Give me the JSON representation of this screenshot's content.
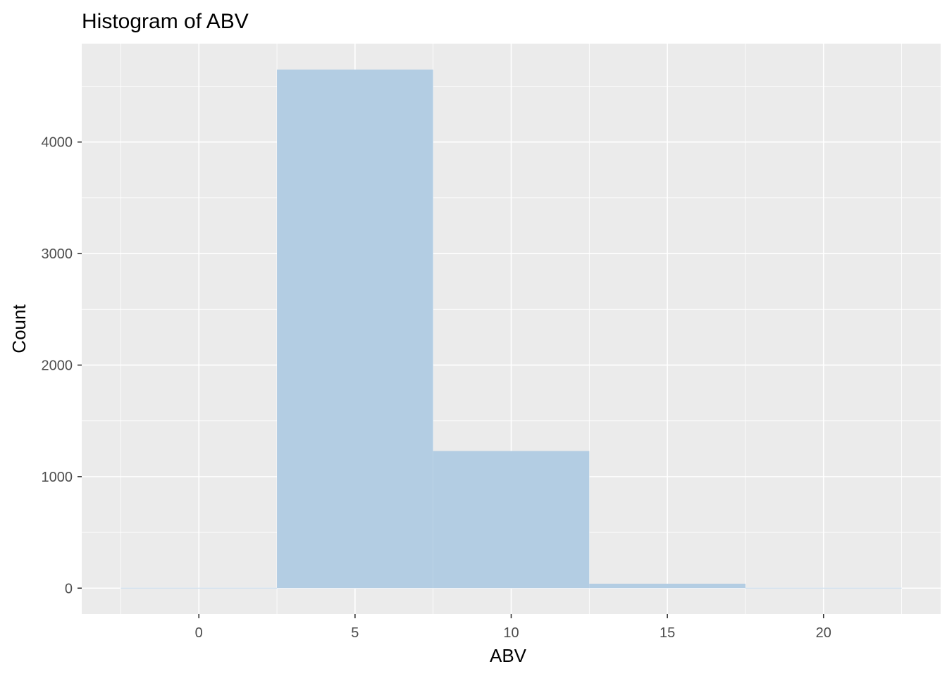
{
  "chart_data": {
    "type": "bar",
    "title": "Histogram of ABV",
    "xlabel": "ABV",
    "ylabel": "Count",
    "bins": [
      {
        "from": -2.5,
        "to": 2.5,
        "count": 3
      },
      {
        "from": 2.5,
        "to": 7.5,
        "count": 4650
      },
      {
        "from": 7.5,
        "to": 12.5,
        "count": 1230
      },
      {
        "from": 12.5,
        "to": 17.5,
        "count": 40
      },
      {
        "from": 17.5,
        "to": 22.5,
        "count": 3
      }
    ],
    "xticks": [
      0,
      5,
      10,
      15,
      20
    ],
    "yticks": [
      0,
      1000,
      2000,
      3000,
      4000
    ],
    "xlim": [
      -3.75,
      23.75
    ],
    "ylim": [
      -232,
      4882
    ],
    "grid": true,
    "bar_color": "#b3cde3",
    "panel_color": "#ebebeb"
  }
}
